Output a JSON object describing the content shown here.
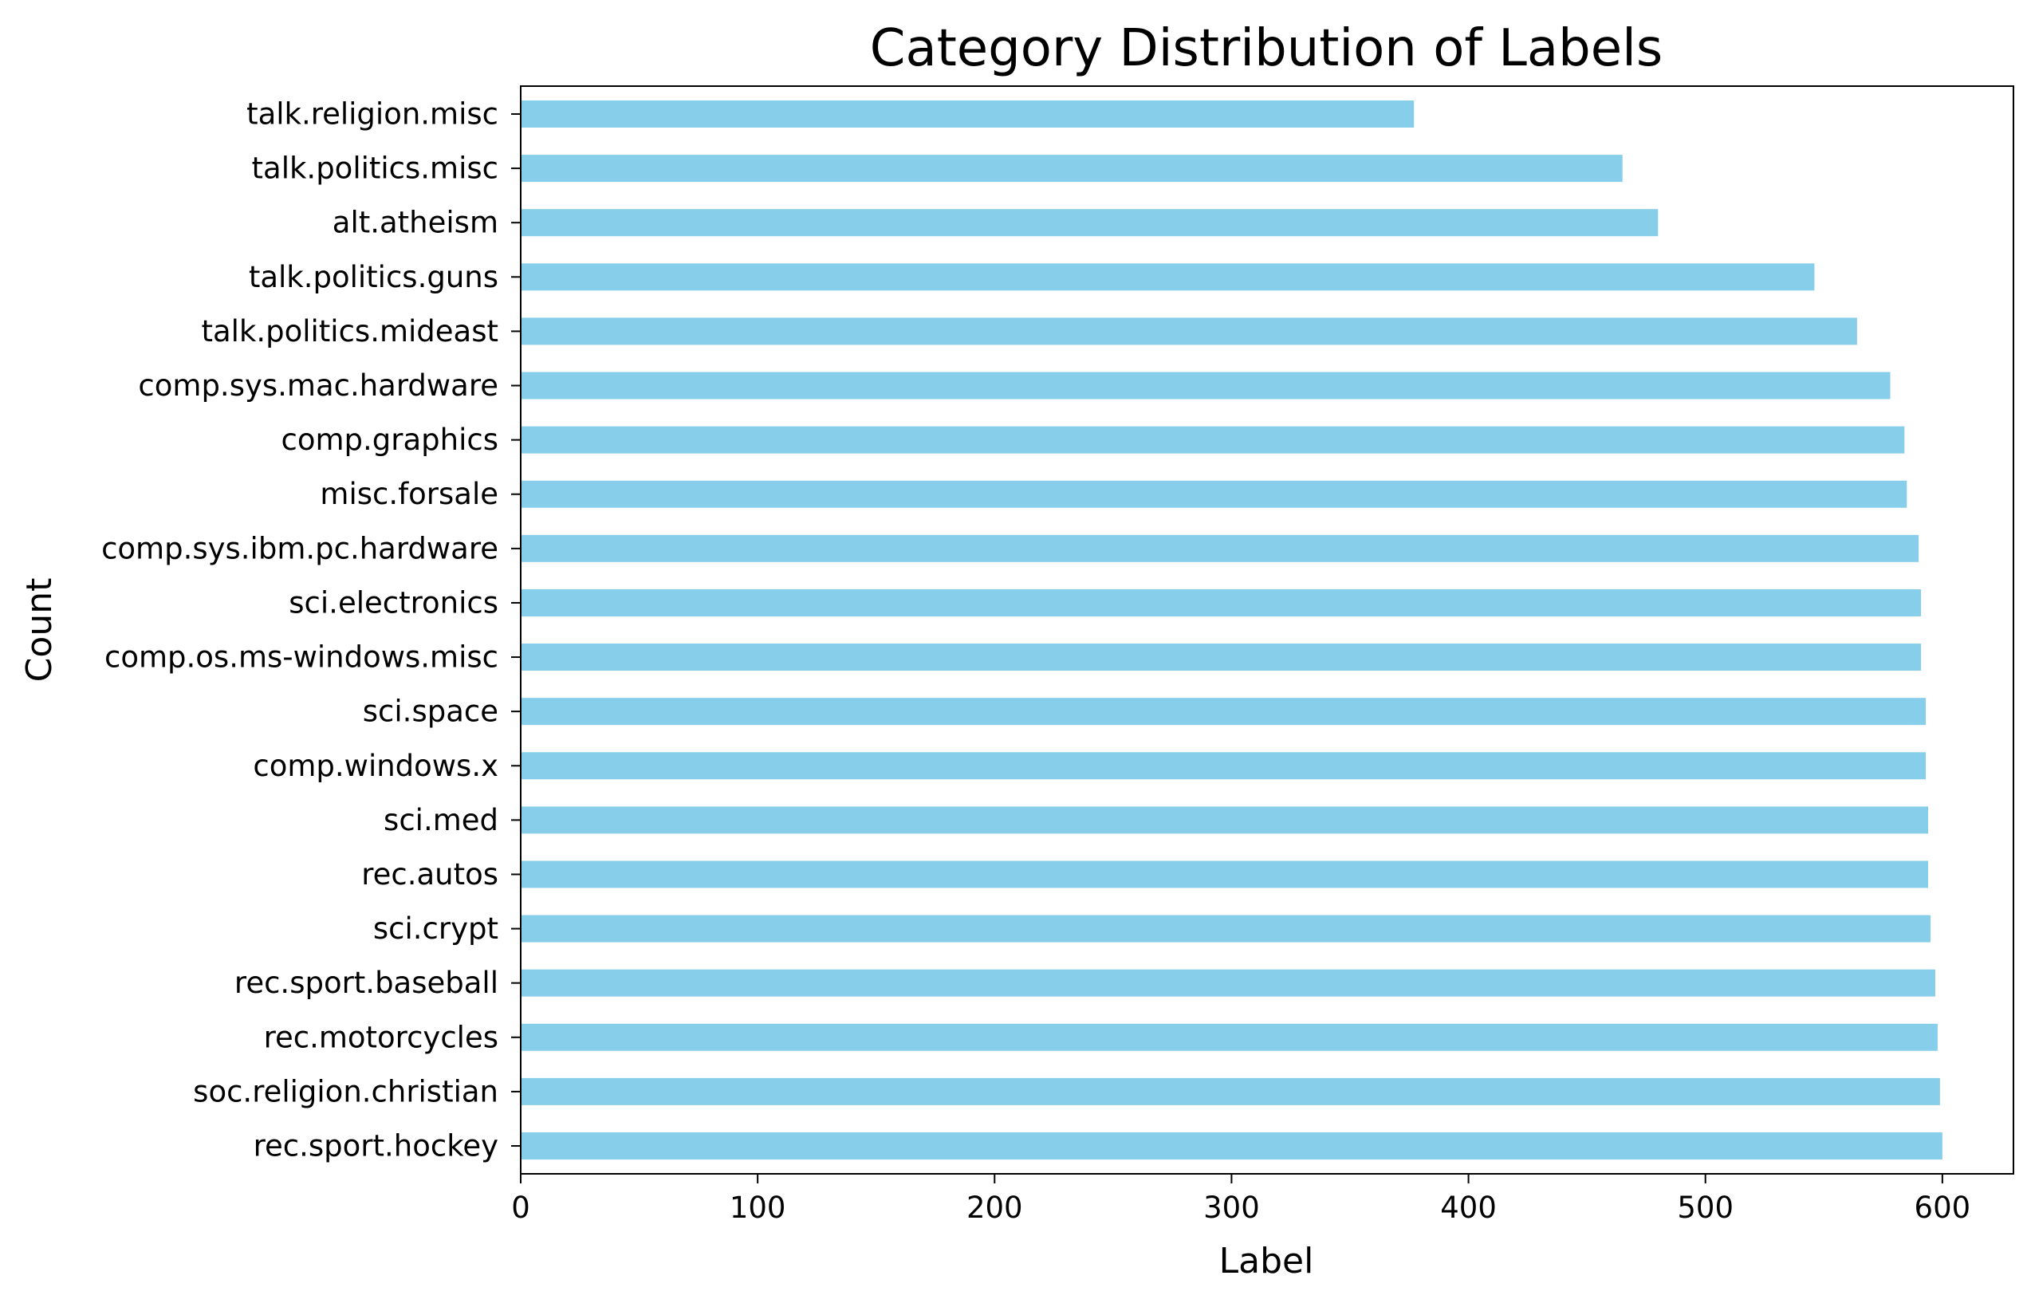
{
  "chart_data": {
    "type": "bar",
    "orientation": "horizontal",
    "title": "Category Distribution of Labels",
    "xlabel": "Label",
    "ylabel": "Count",
    "xlim": [
      0,
      630
    ],
    "xticks": [
      "0",
      "100",
      "200",
      "300",
      "400",
      "500",
      "600"
    ],
    "xtick_values": [
      0,
      100,
      200,
      300,
      400,
      500,
      600
    ],
    "grid": false,
    "legend": "none",
    "bar_color": "#87CEEB",
    "categories": [
      "talk.religion.misc",
      "talk.politics.misc",
      "alt.atheism",
      "talk.politics.guns",
      "talk.politics.mideast",
      "comp.sys.mac.hardware",
      "comp.graphics",
      "misc.forsale",
      "comp.sys.ibm.pc.hardware",
      "sci.electronics",
      "comp.os.ms-windows.misc",
      "sci.space",
      "comp.windows.x",
      "sci.med",
      "rec.autos",
      "sci.crypt",
      "rec.sport.baseball",
      "rec.motorcycles",
      "soc.religion.christian",
      "rec.sport.hockey"
    ],
    "values": [
      377,
      465,
      480,
      546,
      564,
      578,
      584,
      585,
      590,
      591,
      591,
      593,
      593,
      594,
      594,
      595,
      597,
      598,
      599,
      600
    ]
  }
}
